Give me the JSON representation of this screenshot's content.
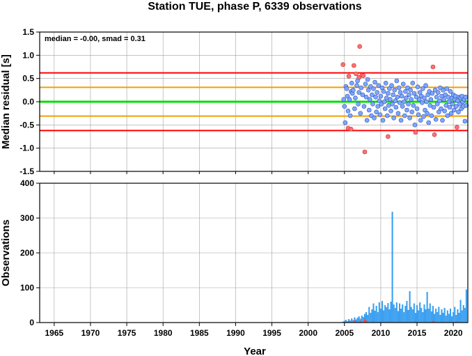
{
  "title": "Station TUE, phase P, 6339 observations",
  "colors": {
    "grid": "#a0a0a0",
    "median_line": "#00e000",
    "smad_line": "#f0a000",
    "limit_line": "#ff0000",
    "inlier_point": "#7da7ff",
    "outlier_point": "#ff7070",
    "bar_main": "#3a9ff0",
    "bar_rejected": "#ff4040"
  },
  "chart_data": [
    {
      "type": "scatter",
      "name": "residuals",
      "ylabel": "Median residual [s]",
      "annotation": "median = -0.00, smad = 0.31",
      "xlim": [
        1963,
        2022
      ],
      "ylim": [
        -1.5,
        1.5
      ],
      "x_ticks": [
        1965,
        1970,
        1975,
        1980,
        1985,
        1990,
        1995,
        2000,
        2005,
        2010,
        2015,
        2020
      ],
      "y_ticks": [
        -1.5,
        -1.0,
        -0.5,
        0.0,
        0.5,
        1.0,
        1.5
      ],
      "y_tick_labels": [
        "-1.5",
        "-1.0",
        "-0.5",
        "0.0",
        "0.5",
        "1.0",
        "1.5"
      ],
      "grid": true,
      "hlines": [
        {
          "y": 0.0,
          "role": "median"
        },
        {
          "y": 0.31,
          "role": "smad"
        },
        {
          "y": -0.31,
          "role": "smad"
        },
        {
          "y": 0.62,
          "role": "limit"
        },
        {
          "y": -0.62,
          "role": "limit"
        }
      ],
      "outliers": [
        {
          "x": 2004.8,
          "y": 0.8
        },
        {
          "x": 2005.6,
          "y": 0.55
        },
        {
          "x": 2006.3,
          "y": 0.78
        },
        {
          "x": 2006.6,
          "y": 0.6
        },
        {
          "x": 2007.1,
          "y": 1.19
        },
        {
          "x": 2007.0,
          "y": 0.52
        },
        {
          "x": 2007.4,
          "y": 0.57
        },
        {
          "x": 2007.6,
          "y": 0.56
        },
        {
          "x": 2005.5,
          "y": -0.57
        },
        {
          "x": 2005.9,
          "y": -0.59
        },
        {
          "x": 2007.8,
          "y": -1.08
        },
        {
          "x": 2011.0,
          "y": -0.75
        },
        {
          "x": 2014.8,
          "y": -0.66
        },
        {
          "x": 2017.2,
          "y": 0.75
        },
        {
          "x": 2017.4,
          "y": -0.71
        },
        {
          "x": 2020.5,
          "y": -0.55
        }
      ],
      "inliers": [
        {
          "x": 2004.9,
          "y": 0.05
        },
        {
          "x": 2005.0,
          "y": -0.1
        },
        {
          "x": 2005.1,
          "y": -0.45
        },
        {
          "x": 2005.2,
          "y": 0.33
        },
        {
          "x": 2005.3,
          "y": 0.28
        },
        {
          "x": 2005.4,
          "y": 0.12
        },
        {
          "x": 2005.5,
          "y": -0.2
        },
        {
          "x": 2005.7,
          "y": 0.05
        },
        {
          "x": 2005.8,
          "y": -0.3
        },
        {
          "x": 2005.9,
          "y": 0.22
        },
        {
          "x": 2006.0,
          "y": 0.4
        },
        {
          "x": 2006.1,
          "y": 0.18
        },
        {
          "x": 2006.2,
          "y": 0.25
        },
        {
          "x": 2006.4,
          "y": -0.15
        },
        {
          "x": 2006.5,
          "y": 0.08
        },
        {
          "x": 2006.7,
          "y": 0.35
        },
        {
          "x": 2006.8,
          "y": 0.45
        },
        {
          "x": 2006.9,
          "y": -0.05
        },
        {
          "x": 2007.0,
          "y": 0.2
        },
        {
          "x": 2007.2,
          "y": -0.25
        },
        {
          "x": 2007.3,
          "y": 0.3
        },
        {
          "x": 2007.5,
          "y": 0.15
        },
        {
          "x": 2007.7,
          "y": -0.1
        },
        {
          "x": 2007.9,
          "y": 0.38
        },
        {
          "x": 2008.0,
          "y": 0.1
        },
        {
          "x": 2008.1,
          "y": -0.4
        },
        {
          "x": 2008.2,
          "y": 0.48
        },
        {
          "x": 2008.3,
          "y": 0.25
        },
        {
          "x": 2008.4,
          "y": -0.18
        },
        {
          "x": 2008.5,
          "y": 0.05
        },
        {
          "x": 2008.6,
          "y": 0.33
        },
        {
          "x": 2008.7,
          "y": -0.3
        },
        {
          "x": 2008.8,
          "y": 0.15
        },
        {
          "x": 2008.9,
          "y": -0.05
        },
        {
          "x": 2009.0,
          "y": 0.28
        },
        {
          "x": 2009.1,
          "y": -0.35
        },
        {
          "x": 2009.2,
          "y": 0.42
        },
        {
          "x": 2009.3,
          "y": 0.1
        },
        {
          "x": 2009.4,
          "y": -0.22
        },
        {
          "x": 2009.5,
          "y": 0.2
        },
        {
          "x": 2009.6,
          "y": -0.1
        },
        {
          "x": 2009.7,
          "y": 0.35
        },
        {
          "x": 2009.8,
          "y": 0.02
        },
        {
          "x": 2009.9,
          "y": -0.28
        },
        {
          "x": 2010.0,
          "y": 0.12
        },
        {
          "x": 2010.1,
          "y": -0.05
        },
        {
          "x": 2010.2,
          "y": 0.3
        },
        {
          "x": 2010.3,
          "y": -0.4
        },
        {
          "x": 2010.4,
          "y": 0.22
        },
        {
          "x": 2010.5,
          "y": 0.0
        },
        {
          "x": 2010.6,
          "y": -0.15
        },
        {
          "x": 2010.7,
          "y": 0.4
        },
        {
          "x": 2010.8,
          "y": 0.08
        },
        {
          "x": 2010.9,
          "y": -0.3
        },
        {
          "x": 2011.0,
          "y": 0.18
        },
        {
          "x": 2011.1,
          "y": -0.08
        },
        {
          "x": 2011.2,
          "y": 0.28
        },
        {
          "x": 2011.3,
          "y": 0.05
        },
        {
          "x": 2011.4,
          "y": -0.2
        },
        {
          "x": 2011.5,
          "y": 0.35
        },
        {
          "x": 2011.6,
          "y": -0.05
        },
        {
          "x": 2011.7,
          "y": 0.15
        },
        {
          "x": 2011.8,
          "y": -0.35
        },
        {
          "x": 2011.9,
          "y": 0.25
        },
        {
          "x": 2012.0,
          "y": 0.02
        },
        {
          "x": 2012.1,
          "y": -0.12
        },
        {
          "x": 2012.2,
          "y": 0.45
        },
        {
          "x": 2012.3,
          "y": 0.1
        },
        {
          "x": 2012.4,
          "y": -0.25
        },
        {
          "x": 2012.5,
          "y": 0.3
        },
        {
          "x": 2012.6,
          "y": -0.02
        },
        {
          "x": 2012.7,
          "y": 0.2
        },
        {
          "x": 2012.8,
          "y": -0.4
        },
        {
          "x": 2012.9,
          "y": 0.12
        },
        {
          "x": 2013.0,
          "y": -0.1
        },
        {
          "x": 2013.1,
          "y": 0.38
        },
        {
          "x": 2013.2,
          "y": 0.0
        },
        {
          "x": 2013.3,
          "y": -0.3
        },
        {
          "x": 2013.4,
          "y": 0.22
        },
        {
          "x": 2013.5,
          "y": 0.08
        },
        {
          "x": 2013.6,
          "y": -0.18
        },
        {
          "x": 2013.7,
          "y": 0.3
        },
        {
          "x": 2013.8,
          "y": -0.05
        },
        {
          "x": 2013.9,
          "y": 0.15
        },
        {
          "x": 2014.0,
          "y": -0.35
        },
        {
          "x": 2014.1,
          "y": 0.25
        },
        {
          "x": 2014.2,
          "y": 0.05
        },
        {
          "x": 2014.3,
          "y": -0.22
        },
        {
          "x": 2014.4,
          "y": 0.4
        },
        {
          "x": 2014.5,
          "y": -0.08
        },
        {
          "x": 2014.6,
          "y": 0.18
        },
        {
          "x": 2014.7,
          "y": -0.5
        },
        {
          "x": 2014.9,
          "y": 0.1
        },
        {
          "x": 2015.0,
          "y": -0.15
        },
        {
          "x": 2015.1,
          "y": 0.32
        },
        {
          "x": 2015.2,
          "y": -0.28
        },
        {
          "x": 2015.3,
          "y": 0.05
        },
        {
          "x": 2015.4,
          "y": 0.2
        },
        {
          "x": 2015.5,
          "y": -0.4
        },
        {
          "x": 2015.6,
          "y": 0.12
        },
        {
          "x": 2015.7,
          "y": -0.02
        },
        {
          "x": 2015.8,
          "y": 0.28
        },
        {
          "x": 2015.9,
          "y": -0.32
        },
        {
          "x": 2016.0,
          "y": 0.08
        },
        {
          "x": 2016.1,
          "y": -0.18
        },
        {
          "x": 2016.2,
          "y": 0.35
        },
        {
          "x": 2016.3,
          "y": 0.0
        },
        {
          "x": 2016.4,
          "y": -0.25
        },
        {
          "x": 2016.5,
          "y": 0.15
        },
        {
          "x": 2016.6,
          "y": -0.45
        },
        {
          "x": 2016.7,
          "y": 0.22
        },
        {
          "x": 2016.8,
          "y": -0.08
        },
        {
          "x": 2016.9,
          "y": 0.05
        },
        {
          "x": 2017.0,
          "y": -0.3
        },
        {
          "x": 2017.1,
          "y": 0.18
        },
        {
          "x": 2017.3,
          "y": -0.12
        },
        {
          "x": 2017.5,
          "y": 0.25
        },
        {
          "x": 2017.6,
          "y": -0.38
        },
        {
          "x": 2017.7,
          "y": 0.1
        },
        {
          "x": 2017.8,
          "y": -0.05
        },
        {
          "x": 2017.9,
          "y": 0.2
        },
        {
          "x": 2018.0,
          "y": -0.22
        },
        {
          "x": 2018.1,
          "y": 0.02
        },
        {
          "x": 2018.2,
          "y": 0.3
        },
        {
          "x": 2018.3,
          "y": -0.15
        },
        {
          "x": 2018.4,
          "y": 0.12
        },
        {
          "x": 2018.5,
          "y": -0.4
        },
        {
          "x": 2018.6,
          "y": 0.25
        },
        {
          "x": 2018.7,
          "y": 0.05
        },
        {
          "x": 2018.8,
          "y": -0.2
        },
        {
          "x": 2018.9,
          "y": 0.15
        },
        {
          "x": 2019.0,
          "y": -0.08
        },
        {
          "x": 2019.1,
          "y": 0.28
        },
        {
          "x": 2019.2,
          "y": -0.3
        },
        {
          "x": 2019.3,
          "y": 0.1
        },
        {
          "x": 2019.4,
          "y": 0.0
        },
        {
          "x": 2019.5,
          "y": -0.12
        },
        {
          "x": 2019.6,
          "y": 0.22
        },
        {
          "x": 2019.7,
          "y": -0.25
        },
        {
          "x": 2019.8,
          "y": 0.08
        },
        {
          "x": 2019.9,
          "y": -0.05
        },
        {
          "x": 2020.0,
          "y": 0.15
        },
        {
          "x": 2020.1,
          "y": -0.18
        },
        {
          "x": 2020.2,
          "y": 0.05
        },
        {
          "x": 2020.3,
          "y": 0.12
        },
        {
          "x": 2020.4,
          "y": -0.1
        },
        {
          "x": 2020.6,
          "y": 0.02
        },
        {
          "x": 2020.7,
          "y": -0.22
        },
        {
          "x": 2020.8,
          "y": 0.1
        },
        {
          "x": 2020.9,
          "y": -0.05
        },
        {
          "x": 2021.0,
          "y": 0.08
        },
        {
          "x": 2021.1,
          "y": -0.15
        },
        {
          "x": 2021.2,
          "y": 0.12
        },
        {
          "x": 2021.3,
          "y": 0.0
        },
        {
          "x": 2021.4,
          "y": -0.1
        },
        {
          "x": 2021.5,
          "y": 0.05
        },
        {
          "x": 2021.6,
          "y": -0.42
        },
        {
          "x": 2021.7,
          "y": 0.1
        },
        {
          "x": 2021.8,
          "y": -0.08
        }
      ]
    },
    {
      "type": "bar",
      "name": "observations",
      "xlabel": "Year",
      "ylabel": "Observations",
      "xlim": [
        1963,
        2022
      ],
      "ylim": [
        0,
        400
      ],
      "x_ticks": [
        1965,
        1970,
        1975,
        1980,
        1985,
        1990,
        1995,
        2000,
        2005,
        2010,
        2015,
        2020
      ],
      "y_ticks": [
        0,
        100,
        200,
        300,
        400
      ],
      "grid": true,
      "bins": [
        {
          "x": 2004.8,
          "v": 3
        },
        {
          "x": 2005.0,
          "v": 5
        },
        {
          "x": 2005.2,
          "v": 8
        },
        {
          "x": 2005.4,
          "v": 4
        },
        {
          "x": 2005.6,
          "v": 10
        },
        {
          "x": 2005.8,
          "v": 6
        },
        {
          "x": 2006.0,
          "v": 12
        },
        {
          "x": 2006.2,
          "v": 7
        },
        {
          "x": 2006.4,
          "v": 15
        },
        {
          "x": 2006.6,
          "v": 9
        },
        {
          "x": 2006.8,
          "v": 14
        },
        {
          "x": 2007.0,
          "v": 18
        },
        {
          "x": 2007.2,
          "v": 11
        },
        {
          "x": 2007.4,
          "v": 20
        },
        {
          "x": 2007.6,
          "v": 16
        },
        {
          "x": 2007.8,
          "v": 25
        },
        {
          "x": 2008.0,
          "v": 30
        },
        {
          "x": 2008.2,
          "v": 22
        },
        {
          "x": 2008.4,
          "v": 45
        },
        {
          "x": 2008.6,
          "v": 28
        },
        {
          "x": 2008.8,
          "v": 38
        },
        {
          "x": 2009.0,
          "v": 55
        },
        {
          "x": 2009.2,
          "v": 34
        },
        {
          "x": 2009.4,
          "v": 48
        },
        {
          "x": 2009.6,
          "v": 30
        },
        {
          "x": 2009.8,
          "v": 58
        },
        {
          "x": 2010.0,
          "v": 40
        },
        {
          "x": 2010.2,
          "v": 62
        },
        {
          "x": 2010.4,
          "v": 35
        },
        {
          "x": 2010.6,
          "v": 50
        },
        {
          "x": 2010.8,
          "v": 44
        },
        {
          "x": 2011.0,
          "v": 56
        },
        {
          "x": 2011.2,
          "v": 38
        },
        {
          "x": 2011.4,
          "v": 60
        },
        {
          "x": 2011.6,
          "v": 318
        },
        {
          "x": 2011.8,
          "v": 52
        },
        {
          "x": 2012.0,
          "v": 42
        },
        {
          "x": 2012.2,
          "v": 58
        },
        {
          "x": 2012.4,
          "v": 33
        },
        {
          "x": 2012.6,
          "v": 55
        },
        {
          "x": 2012.8,
          "v": 40
        },
        {
          "x": 2013.0,
          "v": 52
        },
        {
          "x": 2013.2,
          "v": 30
        },
        {
          "x": 2013.4,
          "v": 48
        },
        {
          "x": 2013.6,
          "v": 62
        },
        {
          "x": 2013.8,
          "v": 36
        },
        {
          "x": 2014.0,
          "v": 90
        },
        {
          "x": 2014.2,
          "v": 45
        },
        {
          "x": 2014.4,
          "v": 38
        },
        {
          "x": 2014.6,
          "v": 55
        },
        {
          "x": 2014.8,
          "v": 28
        },
        {
          "x": 2015.0,
          "v": 50
        },
        {
          "x": 2015.2,
          "v": 35
        },
        {
          "x": 2015.4,
          "v": 58
        },
        {
          "x": 2015.6,
          "v": 42
        },
        {
          "x": 2015.8,
          "v": 30
        },
        {
          "x": 2016.0,
          "v": 52
        },
        {
          "x": 2016.2,
          "v": 38
        },
        {
          "x": 2016.4,
          "v": 88
        },
        {
          "x": 2016.6,
          "v": 40
        },
        {
          "x": 2016.8,
          "v": 55
        },
        {
          "x": 2017.0,
          "v": 32
        },
        {
          "x": 2017.2,
          "v": 48
        },
        {
          "x": 2017.4,
          "v": 25
        },
        {
          "x": 2017.6,
          "v": 40
        },
        {
          "x": 2017.8,
          "v": 30
        },
        {
          "x": 2018.0,
          "v": 45
        },
        {
          "x": 2018.2,
          "v": 22
        },
        {
          "x": 2018.4,
          "v": 38
        },
        {
          "x": 2018.6,
          "v": 28
        },
        {
          "x": 2018.8,
          "v": 42
        },
        {
          "x": 2019.0,
          "v": 20
        },
        {
          "x": 2019.2,
          "v": 35
        },
        {
          "x": 2019.4,
          "v": 25
        },
        {
          "x": 2019.6,
          "v": 40
        },
        {
          "x": 2019.8,
          "v": 18
        },
        {
          "x": 2020.0,
          "v": 30
        },
        {
          "x": 2020.2,
          "v": 45
        },
        {
          "x": 2020.4,
          "v": 22
        },
        {
          "x": 2020.6,
          "v": 38
        },
        {
          "x": 2020.8,
          "v": 28
        },
        {
          "x": 2021.0,
          "v": 65
        },
        {
          "x": 2021.2,
          "v": 35
        },
        {
          "x": 2021.4,
          "v": 50
        },
        {
          "x": 2021.6,
          "v": 42
        },
        {
          "x": 2021.8,
          "v": 95
        }
      ],
      "rejected_bins": [
        {
          "x": 2005.6,
          "v": 4
        },
        {
          "x": 2006.4,
          "v": 6
        },
        {
          "x": 2007.2,
          "v": 5
        },
        {
          "x": 2007.8,
          "v": 8
        },
        {
          "x": 2008.0,
          "v": 6
        },
        {
          "x": 2011.0,
          "v": 3
        },
        {
          "x": 2014.8,
          "v": 4
        },
        {
          "x": 2017.2,
          "v": 5
        },
        {
          "x": 2017.4,
          "v": 3
        },
        {
          "x": 2020.4,
          "v": 4
        }
      ]
    }
  ]
}
